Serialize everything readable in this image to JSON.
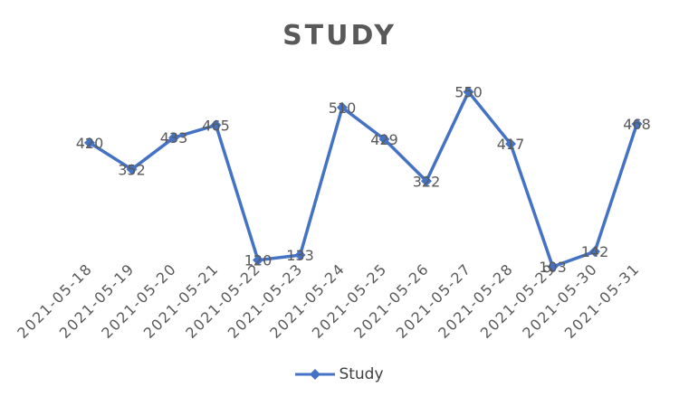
{
  "chart_data": {
    "type": "line",
    "title": "STUDY",
    "categories": [
      "2021-05-18",
      "2021-05-19",
      "2021-05-20",
      "2021-05-21",
      "2021-05-22",
      "2021-05-23",
      "2021-05-24",
      "2021-05-25",
      "2021-05-26",
      "2021-05-27",
      "2021-05-28",
      "2021-05-29",
      "2021-05-30",
      "2021-05-31"
    ],
    "series": [
      {
        "name": "Study",
        "values": [
          420,
          352,
          433,
          465,
          120,
          133,
          510,
          429,
          322,
          550,
          417,
          103,
          142,
          468
        ],
        "color": "#4472C4",
        "marker": "diamond"
      }
    ],
    "legend_position": "bottom",
    "grid": false,
    "y_axis_visible": false,
    "data_labels": true
  }
}
